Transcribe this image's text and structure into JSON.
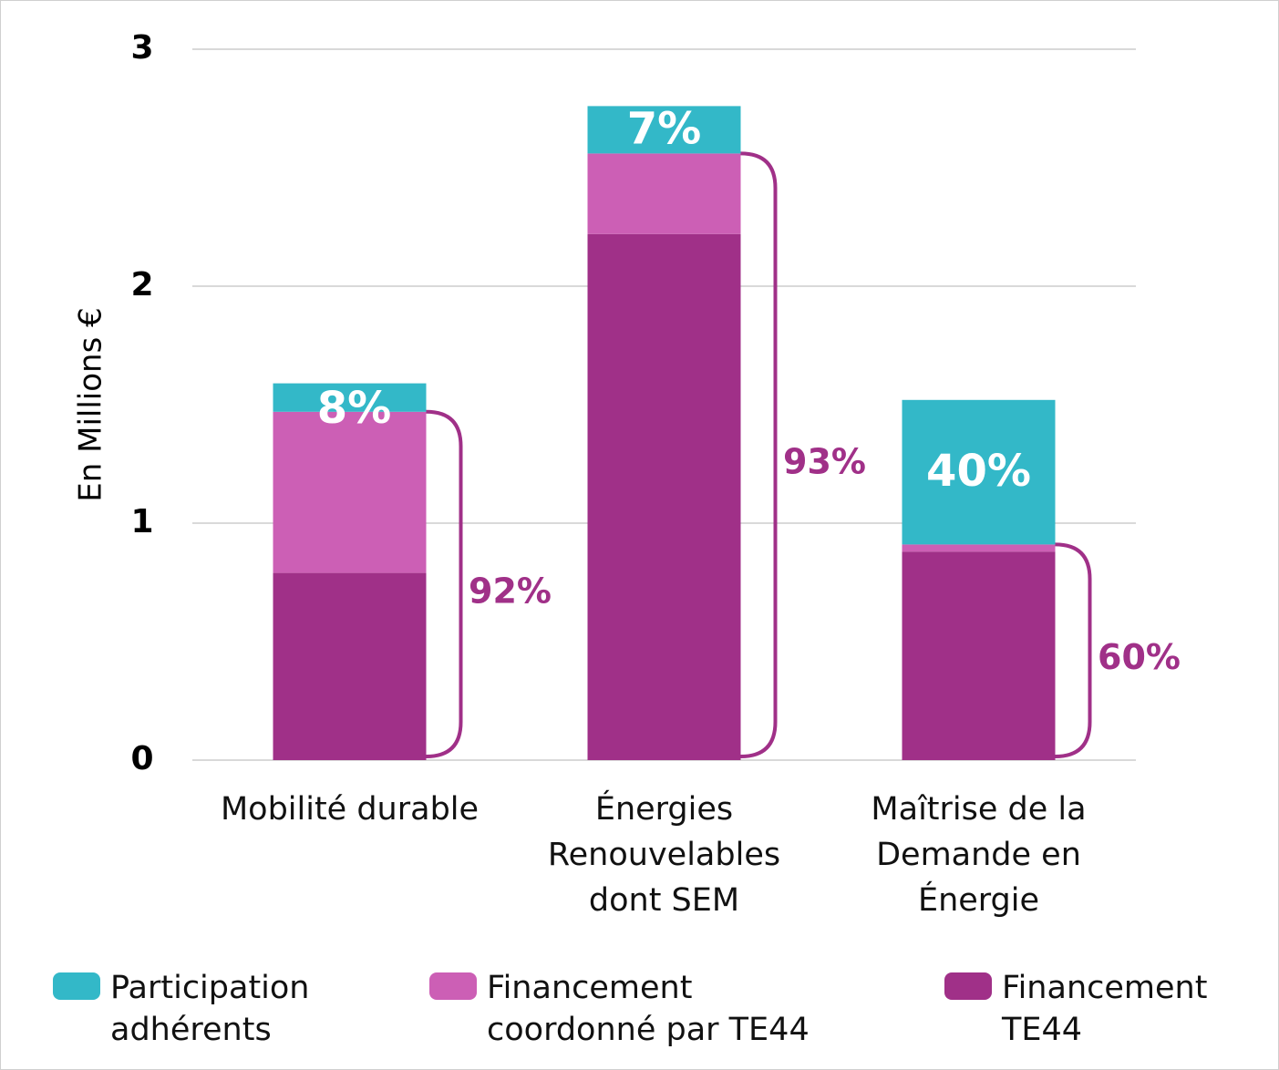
{
  "chart_data": {
    "type": "stacked-bar",
    "y_label": "En Millions €",
    "categories": [
      "Mobilité durable",
      "Énergies Renouvelables dont SEM",
      "Maîtrise de la Demande en Énergie"
    ],
    "series": [
      {
        "name": "Financement TE44",
        "color": "#a03088",
        "values": [
          0.79,
          2.22,
          0.88
        ]
      },
      {
        "name": "Financement coordonné par TE44",
        "color": "#cc5fb5",
        "values": [
          0.68,
          0.34,
          0.03
        ]
      },
      {
        "name": "Participation adhérents",
        "color": "#33b8c8",
        "values": [
          0.12,
          0.2,
          0.61
        ]
      }
    ],
    "annotations": {
      "participation_share": [
        "8%",
        "7%",
        "40%"
      ],
      "te44_share": [
        "92%",
        "93%",
        "60%"
      ]
    },
    "ylim": [
      0,
      3
    ],
    "yticks": [
      0,
      1,
      2,
      3
    ],
    "grid": true
  }
}
